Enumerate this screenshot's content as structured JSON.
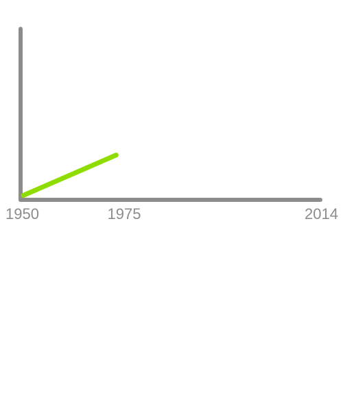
{
  "chart_data": {
    "type": "line",
    "title": "",
    "xlabel": "",
    "ylabel": "",
    "x_ticks": [
      "1950",
      "1975",
      "2014"
    ],
    "xlim": [
      1950,
      2014
    ],
    "ylim": [
      0,
      100
    ],
    "grid": false,
    "series": [
      {
        "color": "#8fdc00",
        "x": [
          1950,
          1970
        ],
        "values": [
          1,
          25
        ]
      }
    ]
  },
  "colors": {
    "axis": "#8c8c8c",
    "series": "#8fdc00"
  }
}
